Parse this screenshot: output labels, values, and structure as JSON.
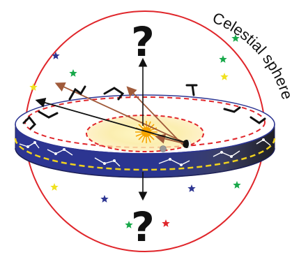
{
  "sphere_label": "Celestial sphere",
  "question_top": "?",
  "question_bottom": "?",
  "colors": {
    "sphere_outline": "#e0262b",
    "ring_band": "#2d3592",
    "ring_band_dark": "#222222",
    "ecliptic_dashed": "#e0262b",
    "equator_dashed": "#f0d21e",
    "sun": "#f6a400",
    "arrow_brown": "#a05a3a"
  },
  "stars": [
    {
      "color": "#2d3592"
    },
    {
      "color": "#18a84a"
    },
    {
      "color": "#f0e11e"
    },
    {
      "color": "#18a84a"
    },
    {
      "color": "#18a84a"
    },
    {
      "color": "#f0e11e"
    },
    {
      "color": "#f0e11e"
    },
    {
      "color": "#2d3592"
    },
    {
      "color": "#18a84a"
    },
    {
      "color": "#2d3592"
    },
    {
      "color": "#18a84a"
    },
    {
      "color": "#e0262b"
    }
  ]
}
